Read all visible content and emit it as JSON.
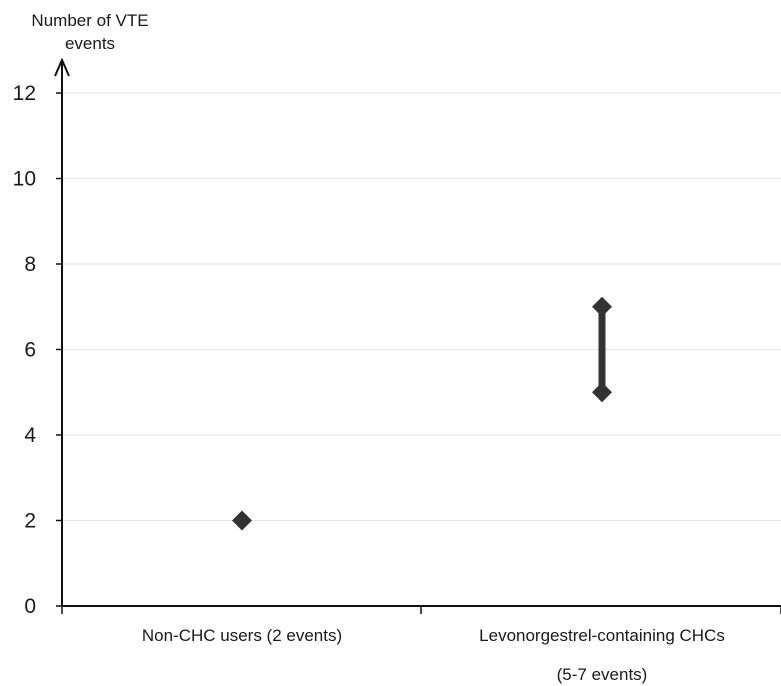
{
  "chart_data": {
    "type": "scatter",
    "title": "",
    "ylabel": [
      "Number of VTE",
      "events"
    ],
    "ylim": [
      0,
      12
    ],
    "yticks": [
      "0",
      "2",
      "4",
      "6",
      "8",
      "10",
      "12"
    ],
    "grid": "horizontal",
    "categories": [
      {
        "label_lines": [
          "Non-CHC users (2 events)"
        ],
        "value": 2
      },
      {
        "label_lines": [
          "Levonorgestrel-containing CHCs",
          "(5-7 events)"
        ],
        "low": 5,
        "high": 7
      }
    ],
    "colors": {
      "marker": "#333333",
      "axis": "#111111",
      "grid": "#e6e6e6",
      "text": "#1a1a1a"
    }
  }
}
